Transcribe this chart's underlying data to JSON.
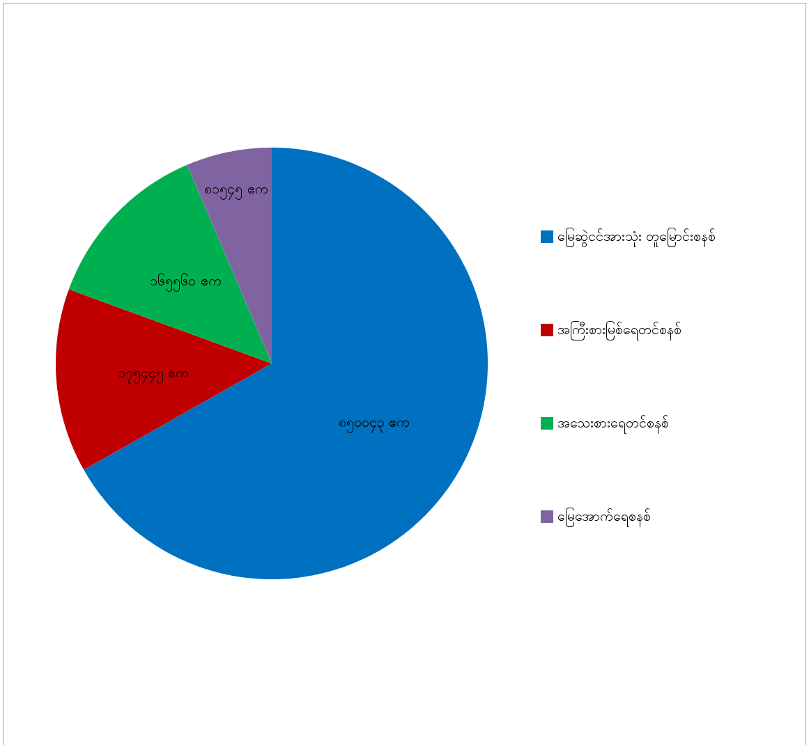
{
  "chart_data": {
    "type": "pie",
    "categories": [
      "မြေဆွဲငင်အားသုံး တူမြောင်းစနစ်",
      "အကြီးစားမြစ်ရေတင်စနစ်",
      "အသေးစားရေတင်စနစ်",
      "မြေအောက်ရေစနစ်"
    ],
    "values": [
      850043,
      175445,
      165560,
      81545
    ],
    "value_labels": [
      "၈၅၀၀၄၃ ဧက",
      "၁၇၅၄၄၅ ဧက",
      "၁၆၅၅၆၀ ဧက",
      "၈၁၅၄၅ ဧက"
    ],
    "colors": [
      "#0070c0",
      "#c00000",
      "#00b050",
      "#8064a2"
    ],
    "legend": "right"
  }
}
